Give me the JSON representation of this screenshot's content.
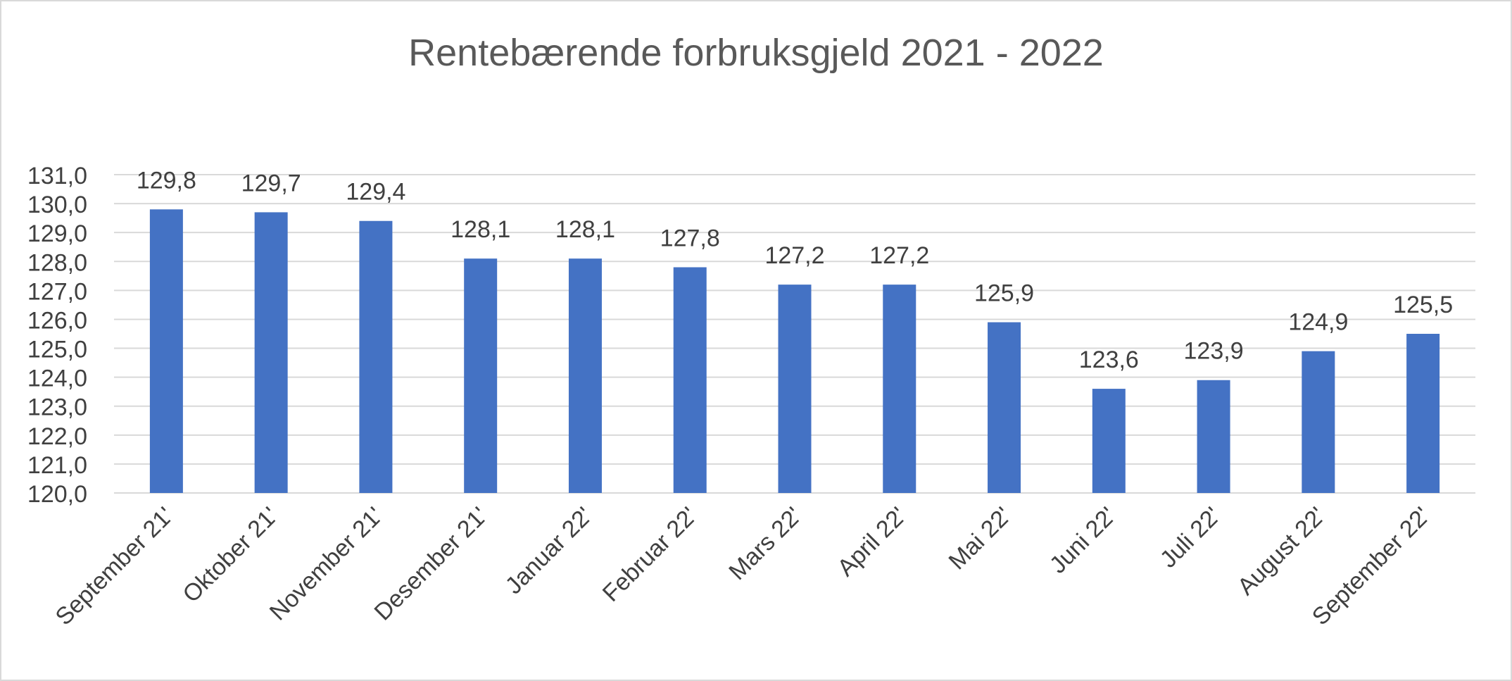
{
  "chart_data": {
    "type": "bar",
    "title": "Rentebærende forbruksgjeld 2021 - 2022",
    "xlabel": "",
    "ylabel": "",
    "categories": [
      "September 21'",
      "Oktober 21'",
      "November 21'",
      "Desember 21'",
      "Januar 22'",
      "Februar 22'",
      "Mars 22'",
      "April 22'",
      "Mai 22'",
      "Juni 22'",
      "Juli 22'",
      "August 22'",
      "September 22'"
    ],
    "values": [
      129.8,
      129.7,
      129.4,
      128.1,
      128.1,
      127.8,
      127.2,
      127.2,
      125.9,
      123.6,
      123.9,
      124.9,
      125.5
    ],
    "data_labels": [
      "129,8",
      "129,7",
      "129,4",
      "128,1",
      "128,1",
      "127,8",
      "127,2",
      "127,2",
      "125,9",
      "123,6",
      "123,9",
      "124,9",
      "125,5"
    ],
    "ylim": [
      120,
      131
    ],
    "yticks": [
      "120,0",
      "121,0",
      "122,0",
      "123,0",
      "124,0",
      "125,0",
      "126,0",
      "127,0",
      "128,0",
      "129,0",
      "130,0",
      "131,0"
    ],
    "grid": true,
    "legend": "none",
    "colors": {
      "bar": "#4472c4",
      "grid": "#d9d9d9",
      "text": "#404040",
      "title": "#595959"
    }
  }
}
